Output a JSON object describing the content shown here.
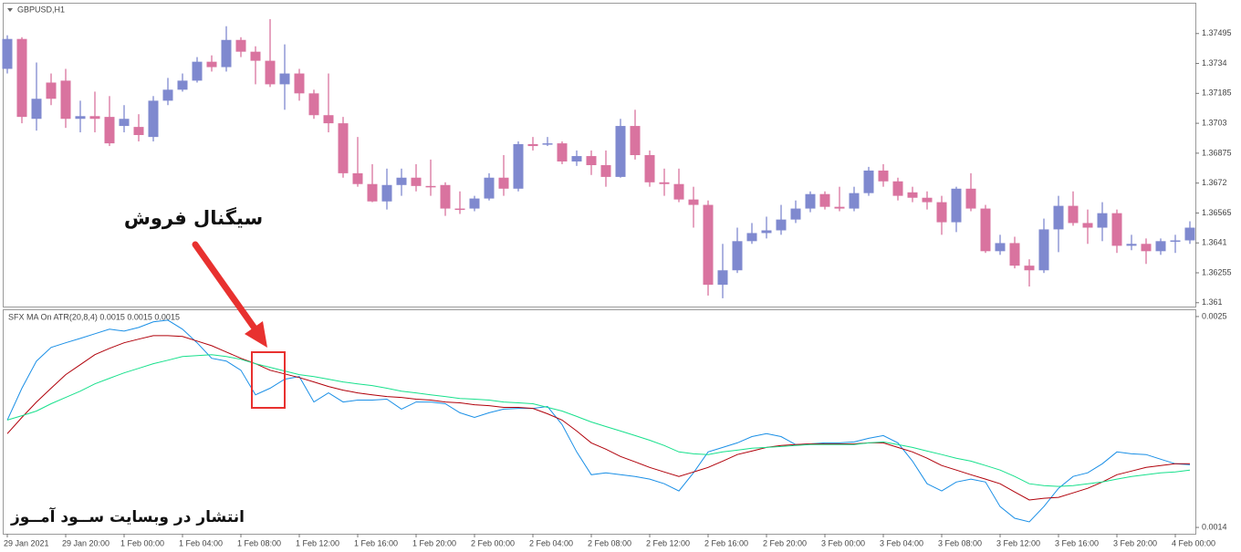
{
  "chart_data": [
    {
      "type": "candlestick",
      "title": "GBPUSD,H1",
      "annotation": "سیگنال فروش",
      "up_color": "#7f89cf",
      "down_color": "#d9739f",
      "grid": false,
      "ylim": [
        1.3608,
        1.3765
      ],
      "yticks": [
        1.37495,
        1.3734,
        1.37185,
        1.3703,
        1.36875,
        1.3672,
        1.36565,
        1.3641,
        1.36255,
        1.361
      ],
      "categories": [
        "29 Jan 2021",
        null,
        null,
        null,
        "29 Jan 20:00",
        null,
        null,
        null,
        "1 Feb 00:00",
        null,
        null,
        null,
        "1 Feb 04:00",
        null,
        null,
        null,
        "1 Feb 08:00",
        null,
        null,
        null,
        "1 Feb 12:00",
        null,
        null,
        null,
        "1 Feb 16:00",
        null,
        null,
        null,
        "1 Feb 20:00",
        null,
        null,
        null,
        "2 Feb 00:00",
        null,
        null,
        null,
        "2 Feb 04:00",
        null,
        null,
        null,
        "2 Feb 08:00",
        null,
        null,
        null,
        "2 Feb 12:00",
        null,
        null,
        null,
        "2 Feb 16:00",
        null,
        null,
        null,
        "2 Feb 20:00",
        null,
        null,
        null,
        "3 Feb 00:00",
        null,
        null,
        null,
        "3 Feb 04:00",
        null,
        null,
        null,
        "3 Feb 08:00",
        null,
        null,
        null,
        "3 Feb 12:00",
        null,
        null,
        null,
        "3 Feb 16:00",
        null,
        null,
        null,
        "3 Feb 20:00",
        null,
        null,
        null,
        "4 Feb 00:00",
        null
      ],
      "open": [
        1.37312,
        1.37467,
        1.37053,
        1.37241,
        1.37251,
        1.37053,
        1.37067,
        1.37063,
        1.37016,
        1.37011,
        1.36959,
        1.37147,
        1.37204,
        1.37251,
        1.37349,
        1.37321,
        1.37462,
        1.37401,
        1.37354,
        1.37232,
        1.37288,
        1.37185,
        1.37072,
        1.3703,
        1.36771,
        1.36715,
        1.36625,
        1.3671,
        1.36748,
        1.36705,
        1.3671,
        1.36588,
        1.36588,
        1.3664,
        1.36748,
        1.36691,
        1.36922,
        1.36922,
        1.36926,
        1.36832,
        1.3686,
        1.36813,
        1.36752,
        1.37016,
        1.36865,
        1.36724,
        1.36715,
        1.36635,
        1.36607,
        1.36193,
        1.36268,
        1.36419,
        1.36461,
        1.36475,
        1.36531,
        1.36588,
        1.36663,
        1.36597,
        1.36588,
        1.36668,
        1.36785,
        1.36729,
        1.36672,
        1.36644,
        1.36621,
        1.36517,
        1.36691,
        1.36588,
        1.36367,
        1.36409,
        1.36292,
        1.36268,
        1.3648,
        1.36602,
        1.36513,
        1.36489,
        1.36564,
        1.36395,
        1.36405,
        1.36367,
        1.36419,
        1.36423
      ],
      "high": [
        1.37486,
        1.37476,
        1.37345,
        1.37288,
        1.37312,
        1.37147,
        1.37194,
        1.37171,
        1.37124,
        1.37077,
        1.37171,
        1.37265,
        1.37288,
        1.37373,
        1.37382,
        1.37533,
        1.37476,
        1.37429,
        1.3757,
        1.37439,
        1.37312,
        1.37204,
        1.37288,
        1.37063,
        1.36959,
        1.36818,
        1.36795,
        1.36795,
        1.36818,
        1.36842,
        1.36724,
        1.36677,
        1.36654,
        1.36771,
        1.36865,
        1.36936,
        1.36959,
        1.36959,
        1.36936,
        1.36889,
        1.36889,
        1.36889,
        1.37053,
        1.371,
        1.36889,
        1.36795,
        1.36795,
        1.36701,
        1.3663,
        1.36405,
        1.36489,
        1.36513,
        1.36546,
        1.36607,
        1.3663,
        1.36677,
        1.36677,
        1.36701,
        1.36701,
        1.36804,
        1.36818,
        1.36748,
        1.36701,
        1.36677,
        1.36654,
        1.36701,
        1.36771,
        1.36607,
        1.36452,
        1.36442,
        1.36325,
        1.36536,
        1.36654,
        1.36677,
        1.36583,
        1.36621,
        1.36583,
        1.36452,
        1.36433,
        1.36433,
        1.36452,
        1.36522
      ],
      "low": [
        1.37288,
        1.3703,
        1.36992,
        1.37124,
        1.37006,
        1.36983,
        1.36983,
        1.36912,
        1.36983,
        1.36936,
        1.36936,
        1.37124,
        1.37194,
        1.37241,
        1.37298,
        1.37298,
        1.37373,
        1.37232,
        1.37218,
        1.371,
        1.37147,
        1.37053,
        1.36983,
        1.36748,
        1.36701,
        1.36621,
        1.36583,
        1.36654,
        1.36677,
        1.36654,
        1.3655,
        1.3656,
        1.36574,
        1.3663,
        1.36654,
        1.36677,
        1.36889,
        1.36912,
        1.36818,
        1.36809,
        1.36762,
        1.36701,
        1.36748,
        1.36842,
        1.36701,
        1.36654,
        1.36621,
        1.36489,
        1.36137,
        1.36123,
        1.36254,
        1.36405,
        1.36433,
        1.36452,
        1.36513,
        1.36569,
        1.36583,
        1.36574,
        1.36574,
        1.36654,
        1.36701,
        1.3663,
        1.36621,
        1.36583,
        1.36452,
        1.36466,
        1.36574,
        1.36358,
        1.36348,
        1.36278,
        1.36184,
        1.36254,
        1.36362,
        1.36499,
        1.36405,
        1.36419,
        1.36358,
        1.36372,
        1.36301,
        1.36348,
        1.36358,
        1.36405
      ],
      "close": [
        1.37467,
        1.37063,
        1.37157,
        1.37157,
        1.37053,
        1.37067,
        1.37053,
        1.36926,
        1.37053,
        1.36969,
        1.37147,
        1.37204,
        1.37251,
        1.37349,
        1.37321,
        1.37462,
        1.37401,
        1.37354,
        1.37232,
        1.37288,
        1.37185,
        1.37072,
        1.3703,
        1.36771,
        1.36715,
        1.36625,
        1.3671,
        1.36748,
        1.36705,
        1.36701,
        1.36588,
        1.36583,
        1.3664,
        1.36748,
        1.36691,
        1.36922,
        1.36912,
        1.36926,
        1.36832,
        1.3686,
        1.36813,
        1.36752,
        1.37016,
        1.36865,
        1.36724,
        1.36715,
        1.36635,
        1.36607,
        1.36193,
        1.36268,
        1.36419,
        1.36461,
        1.36475,
        1.36531,
        1.36588,
        1.36663,
        1.36597,
        1.36588,
        1.36668,
        1.36785,
        1.36729,
        1.36654,
        1.36644,
        1.36621,
        1.36517,
        1.36691,
        1.36588,
        1.36367,
        1.36409,
        1.36292,
        1.36268,
        1.3648,
        1.36602,
        1.36513,
        1.36489,
        1.36564,
        1.36395,
        1.36405,
        1.36367,
        1.36419,
        1.36423,
        1.36489
      ]
    },
    {
      "type": "line",
      "title": "SFX MA On ATR(20,8,4) 0.0015 0.0015 0.0015",
      "watermark": "انتشار در وبسایت ســود آمــوز",
      "grid": false,
      "ylim": [
        0.001367,
        0.002533
      ],
      "yticks": [
        0.0025,
        0.0014
      ],
      "series": [
        {
          "color": "#1a8fe6",
          "values": [
            0.00196,
            0.002126,
            0.002268,
            0.002339,
            0.002363,
            0.002386,
            0.00241,
            0.002434,
            0.002424,
            0.002443,
            0.002472,
            0.002481,
            0.002434,
            0.002363,
            0.002282,
            0.002268,
            0.00222,
            0.002092,
            0.002126,
            0.002173,
            0.002187,
            0.002054,
            0.002102,
            0.002054,
            0.002064,
            0.002064,
            0.002069,
            0.002017,
            0.002054,
            0.002054,
            0.002045,
            0.001998,
            0.001974,
            0.001998,
            0.002017,
            0.002021,
            0.002021,
            0.002031,
            0.001936,
            0.001794,
            0.001675,
            0.001685,
            0.001675,
            0.001666,
            0.001652,
            0.001628,
            0.00159,
            0.001685,
            0.001794,
            0.001817,
            0.001841,
            0.001874,
            0.001889,
            0.001874,
            0.001832,
            0.001836,
            0.001841,
            0.001841,
            0.001846,
            0.001865,
            0.001879,
            0.001841,
            0.001746,
            0.001628,
            0.00159,
            0.001637,
            0.001652,
            0.001637,
            0.001509,
            0.001448,
            0.001429,
            0.001509,
            0.001604,
            0.001666,
            0.001685,
            0.001732,
            0.001794,
            0.001784,
            0.00178,
            0.001756,
            0.001732,
            0.001727
          ]
        },
        {
          "color": "#b0000a",
          "values": [
            0.001889,
            0.001974,
            0.002054,
            0.002126,
            0.002197,
            0.002249,
            0.002301,
            0.002334,
            0.002363,
            0.002382,
            0.0024,
            0.0024,
            0.002396,
            0.002372,
            0.002348,
            0.002315,
            0.002282,
            0.002254,
            0.00222,
            0.002201,
            0.002182,
            0.002159,
            0.002135,
            0.002116,
            0.002102,
            0.002092,
            0.002083,
            0.002078,
            0.002069,
            0.002064,
            0.002054,
            0.00205,
            0.00204,
            0.002035,
            0.002026,
            0.002026,
            0.002021,
            0.001993,
            0.00196,
            0.001903,
            0.001841,
            0.001808,
            0.00177,
            0.001742,
            0.001713,
            0.001689,
            0.001666,
            0.001689,
            0.001713,
            0.001746,
            0.00178,
            0.001798,
            0.001817,
            0.001827,
            0.001832,
            0.001836,
            0.001836,
            0.001836,
            0.001836,
            0.001841,
            0.001841,
            0.001817,
            0.001794,
            0.001761,
            0.001723,
            0.001699,
            0.001675,
            0.001652,
            0.001628,
            0.001585,
            0.001543,
            0.001552,
            0.001557,
            0.00158,
            0.001604,
            0.001637,
            0.001675,
            0.001694,
            0.001713,
            0.001723,
            0.001732,
            0.001732
          ]
        },
        {
          "color": "#17e08c",
          "values": [
            0.00196,
            0.001983,
            0.002007,
            0.002045,
            0.002078,
            0.002111,
            0.002149,
            0.002178,
            0.002206,
            0.00223,
            0.002254,
            0.002272,
            0.002291,
            0.002296,
            0.002301,
            0.002291,
            0.002277,
            0.002254,
            0.002235,
            0.002216,
            0.002197,
            0.002187,
            0.002173,
            0.002159,
            0.002149,
            0.00214,
            0.002126,
            0.002111,
            0.002102,
            0.002092,
            0.002083,
            0.002073,
            0.002069,
            0.002064,
            0.002054,
            0.00205,
            0.002045,
            0.002026,
            0.002007,
            0.001979,
            0.00195,
            0.001926,
            0.001903,
            0.001879,
            0.001855,
            0.001827,
            0.001794,
            0.001784,
            0.00178,
            0.001794,
            0.001803,
            0.001813,
            0.001817,
            0.001822,
            0.001827,
            0.001832,
            0.001832,
            0.001832,
            0.001832,
            0.001841,
            0.001846,
            0.001832,
            0.001817,
            0.001798,
            0.00178,
            0.001761,
            0.001746,
            0.001723,
            0.001699,
            0.001666,
            0.001628,
            0.001618,
            0.001614,
            0.001618,
            0.001628,
            0.001637,
            0.001652,
            0.001666,
            0.001675,
            0.001685,
            0.001689,
            0.001699
          ]
        }
      ]
    }
  ]
}
